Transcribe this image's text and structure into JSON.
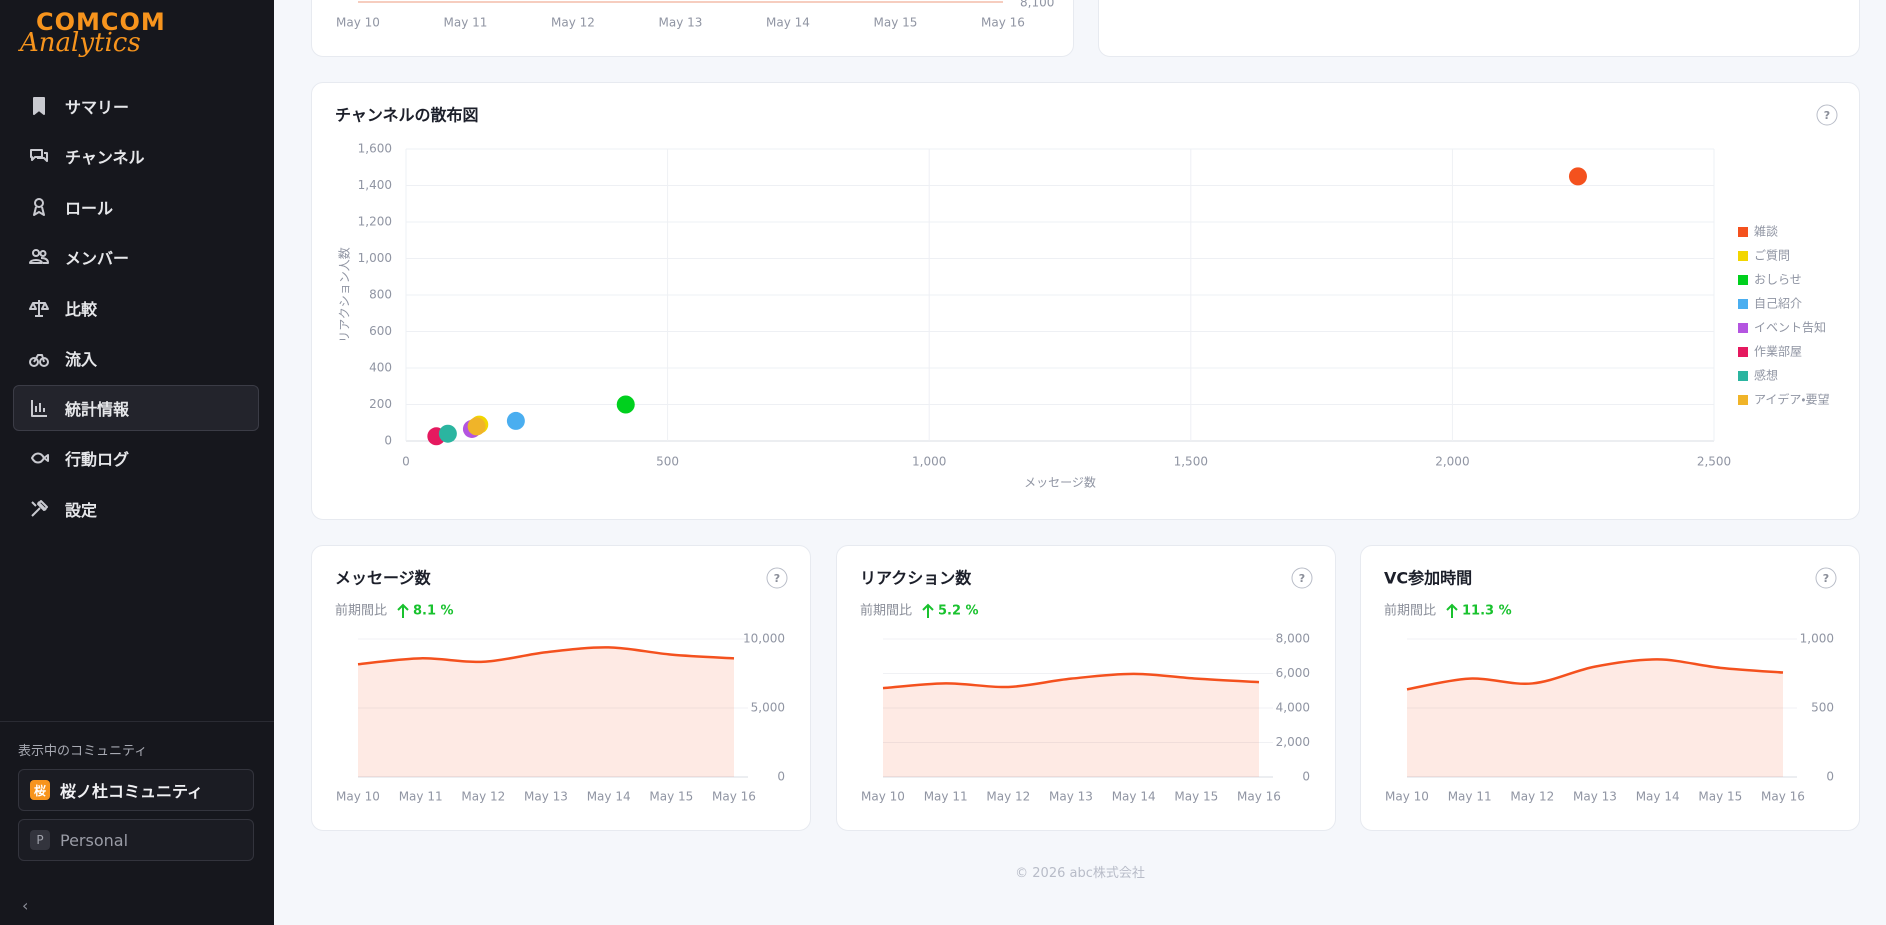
{
  "app": {
    "logo_top": "COMCOM",
    "logo_bottom": "Analytics",
    "nav": [
      {
        "label": "サマリー"
      },
      {
        "label": "チャンネル"
      },
      {
        "label": "ロール"
      },
      {
        "label": "メンバー"
      },
      {
        "label": "比較"
      },
      {
        "label": "流入"
      },
      {
        "label": "統計情報",
        "active": true
      },
      {
        "label": "行動ログ"
      },
      {
        "label": "設定"
      }
    ],
    "community_heading": "表示中のコミュニティ",
    "communities": [
      {
        "icon": "桜",
        "name": "桜ノ杜コミュニティ",
        "active": true
      },
      {
        "icon": "P",
        "name": "Personal"
      }
    ],
    "collapse": "‹",
    "help": "?",
    "footer": "© 2026 abc株式会社"
  },
  "chart_data": [
    {
      "type": "line",
      "categories": [
        "May 10",
        "May 11",
        "May 12",
        "May 13",
        "May 14",
        "May 15",
        "May 16"
      ],
      "yticks": [
        {
          "value": 8100,
          "label": "8,100"
        }
      ]
    },
    {
      "type": "scatter",
      "title": "チャンネルの散布図",
      "x_label": "メッセージ数",
      "y_label": "リアクション人数",
      "xlim": [
        0,
        2500
      ],
      "ylim": [
        0,
        1600
      ],
      "xticks": [
        0,
        500,
        {
          "value": 1000,
          "label": "1,000"
        },
        {
          "value": 1500,
          "label": "1,500"
        },
        {
          "value": 2000,
          "label": "2,000"
        },
        {
          "value": 2500,
          "label": "2,500"
        }
      ],
      "yticks": [
        0,
        200,
        400,
        600,
        800,
        {
          "value": 1000,
          "label": "1,000"
        },
        {
          "value": 1200,
          "label": "1,200"
        },
        {
          "value": 1400,
          "label": "1,400"
        },
        {
          "value": 1600,
          "label": "1,600"
        }
      ],
      "grid": true,
      "legend": "right",
      "series": [
        {
          "name": "雑談",
          "color": "#f4511e",
          "x": [
            2240
          ],
          "values": [
            1450
          ]
        },
        {
          "name": "ご質問",
          "color": "#f2d600",
          "x": [
            140
          ],
          "values": [
            90
          ]
        },
        {
          "name": "おしらせ",
          "color": "#00d01e",
          "x": [
            420
          ],
          "values": [
            200
          ]
        },
        {
          "name": "自己紹介",
          "color": "#4aaef0",
          "x": [
            210
          ],
          "values": [
            110
          ]
        },
        {
          "name": "イベント告知",
          "color": "#b455e0",
          "x": [
            126
          ],
          "values": [
            66
          ]
        },
        {
          "name": "作業部屋",
          "color": "#e5195f",
          "x": [
            58
          ],
          "values": [
            26
          ]
        },
        {
          "name": "感想",
          "color": "#2bb5a0",
          "x": [
            80
          ],
          "values": [
            40
          ]
        },
        {
          "name": "アイデア・要望",
          "color": "#f0b429",
          "x": [
            135
          ],
          "values": [
            80
          ]
        }
      ]
    },
    {
      "type": "area",
      "title": "メッセージ数",
      "comparison_label": "前期間比",
      "change": 8.1,
      "change_label": "8.1 %",
      "color": "#f4511e",
      "categories": [
        "May 10",
        "May 11",
        "May 12",
        "May 13",
        "May 14",
        "May 15",
        "May 16"
      ],
      "values": [
        8170,
        8600,
        8350,
        9040,
        9390,
        8870,
        8600
      ],
      "ylim": [
        0,
        10000
      ],
      "yticks": [
        0,
        {
          "value": 5000,
          "label": "5,000"
        },
        {
          "value": 10000,
          "label": "10,000"
        }
      ]
    },
    {
      "type": "area",
      "title": "リアクション数",
      "comparison_label": "前期間比",
      "change": 5.2,
      "change_label": "5.2 %",
      "color": "#f4511e",
      "categories": [
        "May 10",
        "May 11",
        "May 12",
        "May 13",
        "May 14",
        "May 15",
        "May 16"
      ],
      "values": [
        5150,
        5430,
        5220,
        5700,
        5980,
        5700,
        5500
      ],
      "ylim": [
        0,
        8000
      ],
      "yticks": [
        0,
        {
          "value": 2000,
          "label": "2,000"
        },
        {
          "value": 4000,
          "label": "4,000"
        },
        {
          "value": 6000,
          "label": "6,000"
        },
        {
          "value": 8000,
          "label": "8,000"
        }
      ]
    },
    {
      "type": "area",
      "title": "VC参加時間",
      "comparison_label": "前期間比",
      "change": 11.3,
      "change_label": "11.3 %",
      "color": "#f4511e",
      "categories": [
        "May 10",
        "May 11",
        "May 12",
        "May 13",
        "May 14",
        "May 15",
        "May 16"
      ],
      "values": [
        635,
        713,
        678,
        800,
        852,
        791,
        757
      ],
      "ylim": [
        0,
        1000
      ],
      "yticks": [
        0,
        500,
        {
          "value": 1000,
          "label": "1,000"
        }
      ]
    }
  ]
}
